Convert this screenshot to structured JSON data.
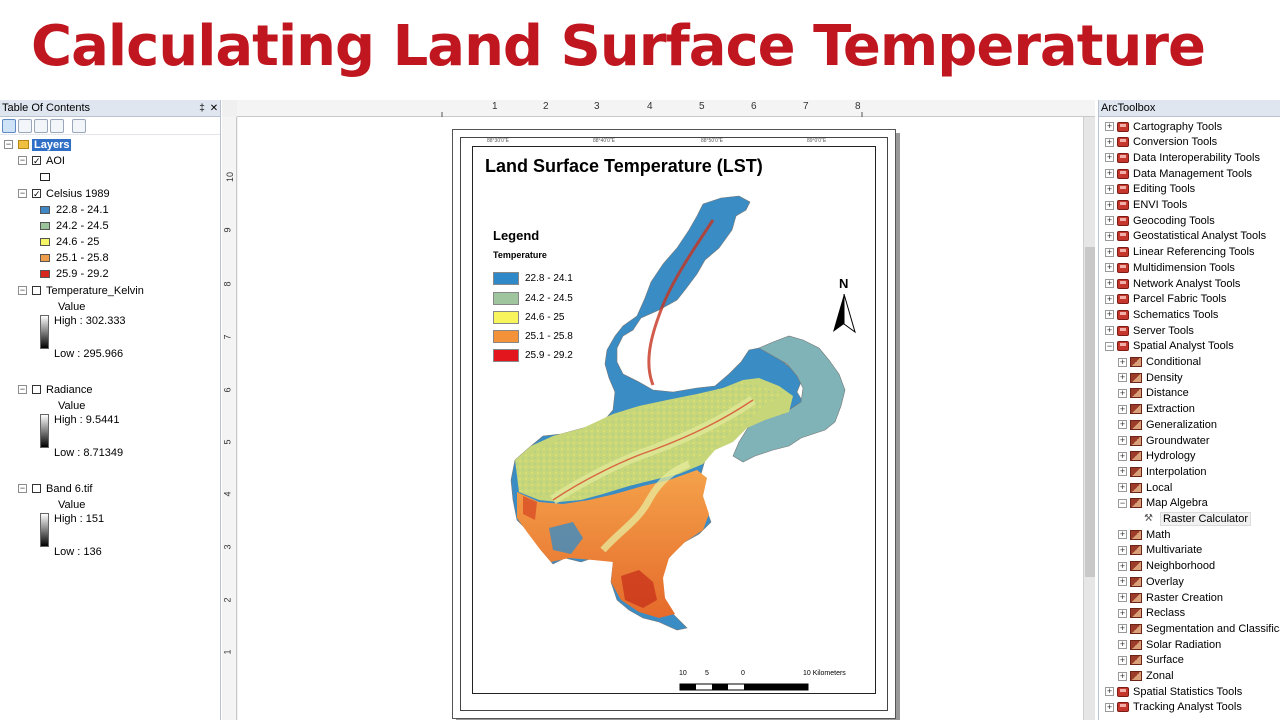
{
  "banner": {
    "title": "Calculating Land Surface Temperature"
  },
  "toc": {
    "title": "Table Of Contents",
    "pin": "‡",
    "close": "✕",
    "root": "Layers",
    "layers": {
      "aoi": "AOI",
      "celsius": "Celsius 1989",
      "celsius_classes": [
        {
          "label": "22.8 - 24.1",
          "color": "#3f87c5"
        },
        {
          "label": "24.2 - 24.5",
          "color": "#9bc49b"
        },
        {
          "label": "24.6 - 25",
          "color": "#f4f464"
        },
        {
          "label": "25.1 - 25.8",
          "color": "#ee9d4a"
        },
        {
          "label": "25.9 - 29.2",
          "color": "#d7261e"
        }
      ],
      "kelvin": {
        "name": "Temperature_Kelvin",
        "value": "Value",
        "high": "High : 302.333",
        "low": "Low : 295.966"
      },
      "radiance": {
        "name": "Radiance",
        "value": "Value",
        "high": "High : 9.5441",
        "low": "Low : 8.71349"
      },
      "band6": {
        "name": "Band 6.tif",
        "value": "Value",
        "high": "High : 151",
        "low": "Low : 136"
      }
    }
  },
  "map": {
    "ruler_h": [
      "1",
      "2",
      "3",
      "4",
      "5",
      "6",
      "7",
      "8"
    ],
    "ruler_v": [
      "10",
      "9",
      "8",
      "7",
      "6",
      "5",
      "4",
      "3",
      "2",
      "1"
    ],
    "layout_title": "Land Surface Temperature (LST)",
    "legend_title": "Legend",
    "legend_subtitle": "Temperature",
    "legend_items": [
      {
        "label": "22.8 - 24.1",
        "color": "#2f88c8"
      },
      {
        "label": "24.2 - 24.5",
        "color": "#9fc59e"
      },
      {
        "label": "24.6 - 25",
        "color": "#f7f45c"
      },
      {
        "label": "25.1 - 25.8",
        "color": "#f4923a"
      },
      {
        "label": "25.9 - 29.2",
        "color": "#e3161e"
      }
    ],
    "north_label": "N",
    "scale_labels": [
      "10",
      "5",
      "0",
      "10 Kilometers"
    ]
  },
  "toolbox": {
    "title": "ArcToolbox",
    "top_tools": [
      "Cartography Tools",
      "Conversion Tools",
      "Data Interoperability Tools",
      "Data Management Tools",
      "Editing Tools",
      "ENVI Tools",
      "Geocoding Tools",
      "Geostatistical Analyst Tools",
      "Linear Referencing Tools",
      "Multidimension Tools",
      "Network Analyst Tools",
      "Parcel Fabric Tools",
      "Schematics Tools",
      "Server Tools",
      "Spatial Analyst Tools"
    ],
    "spatial_analyst_children": [
      "Conditional",
      "Density",
      "Distance",
      "Extraction",
      "Generalization",
      "Groundwater",
      "Hydrology",
      "Interpolation",
      "Local",
      "Map Algebra"
    ],
    "map_algebra_child": "Raster Calculator",
    "after_map_algebra": [
      "Math",
      "Multivariate",
      "Neighborhood",
      "Overlay",
      "Raster Creation",
      "Reclass",
      "Segmentation and Classification",
      "Solar Radiation",
      "Surface",
      "Zonal"
    ],
    "bottom_tools": [
      "Spatial Statistics Tools",
      "Tracking Analyst Tools"
    ]
  }
}
